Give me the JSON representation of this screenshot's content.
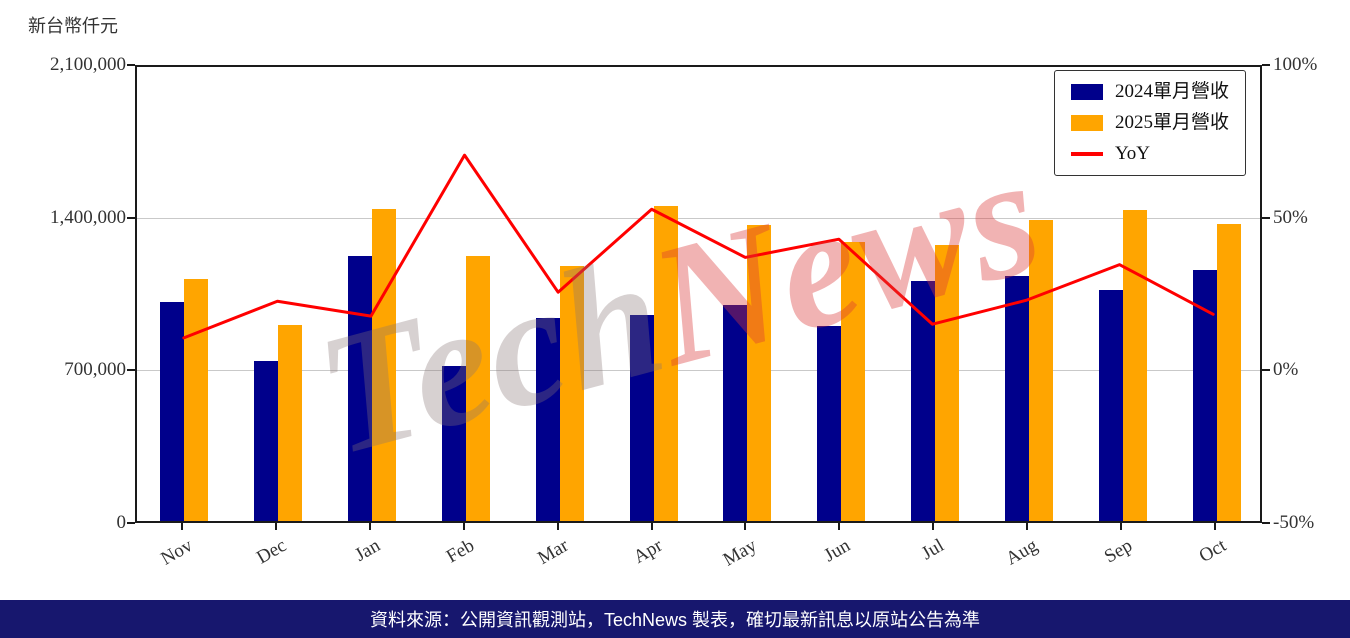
{
  "axis_title": "新台幣仟元",
  "watermark": {
    "part1": "Tech",
    "part2": "News"
  },
  "footer": {
    "text": "資料來源：公開資訊觀測站，TechNews 製表，確切最新訊息以原站公告為準",
    "bg": "#17176E"
  },
  "legend": {
    "items": [
      {
        "label": "2024單月營收",
        "marker": "rect",
        "color": "#00008B"
      },
      {
        "label": "2025單月營收",
        "marker": "rect",
        "color": "#FFA500"
      },
      {
        "label": "YoY",
        "marker": "line",
        "color": "#FF0000"
      }
    ]
  },
  "chart_data": {
    "type": "bar+line",
    "categories": [
      "Nov",
      "Dec",
      "Jan",
      "Feb",
      "Mar",
      "Apr",
      "May",
      "Jun",
      "Jul",
      "Aug",
      "Sep",
      "Oct"
    ],
    "series": [
      {
        "name": "2024單月營收",
        "type": "bar",
        "axis": "left",
        "color": "#00008B",
        "values": [
          1004000,
          733000,
          1215000,
          711000,
          931000,
          944000,
          990000,
          894000,
          1100000,
          1123000,
          1059000,
          1151000
        ]
      },
      {
        "name": "2025單月營收",
        "type": "bar",
        "axis": "left",
        "color": "#FFA500",
        "values": [
          1109000,
          899000,
          1430000,
          1215000,
          1169000,
          1444000,
          1357000,
          1279000,
          1265000,
          1380000,
          1426000,
          1362000
        ]
      },
      {
        "name": "YoY",
        "type": "line",
        "axis": "right",
        "color": "#FF0000",
        "unit": "%",
        "values": [
          10.5,
          22.6,
          17.7,
          70.9,
          25.6,
          53.0,
          37.1,
          43.1,
          15.0,
          22.9,
          34.7,
          18.3
        ]
      }
    ],
    "left_axis": {
      "title": "新台幣仟元",
      "range": [
        0,
        2100000
      ],
      "ticks": [
        {
          "label": "0",
          "value": 0
        },
        {
          "label": "700,000",
          "value": 700000
        },
        {
          "label": "1,400,000",
          "value": 1400000
        },
        {
          "label": "2,100,000",
          "value": 2100000
        }
      ]
    },
    "right_axis": {
      "range": [
        -50,
        100
      ],
      "ticks": [
        {
          "label": "-50%",
          "value": -50
        },
        {
          "label": "0%",
          "value": 0
        },
        {
          "label": "50%",
          "value": 50
        },
        {
          "label": "100%",
          "value": 100
        }
      ]
    },
    "grid": "horizontal",
    "legend_position": "top-right"
  }
}
